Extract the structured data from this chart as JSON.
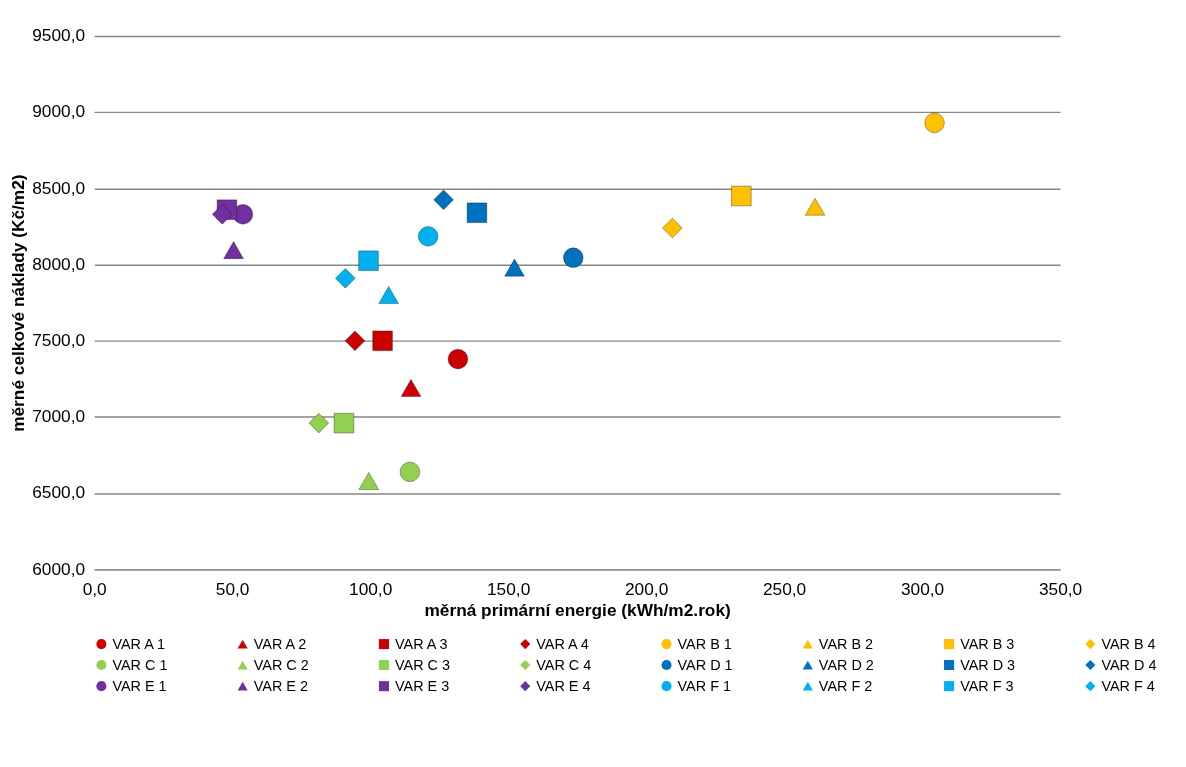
{
  "chart_data": {
    "type": "scatter",
    "xlabel": "měrná primární energie (kWh/m2.rok)",
    "ylabel": "měrné celkové náklady (Kč/m2)",
    "xlim": [
      0,
      350
    ],
    "ylim": [
      6000,
      9500
    ],
    "xticks": [
      {
        "value": 0,
        "label": "0,0"
      },
      {
        "value": 50,
        "label": "50,0"
      },
      {
        "value": 100,
        "label": "100,0"
      },
      {
        "value": 150,
        "label": "150,0"
      },
      {
        "value": 200,
        "label": "200,0"
      },
      {
        "value": 250,
        "label": "250,0"
      },
      {
        "value": 300,
        "label": "300,0"
      },
      {
        "value": 350,
        "label": "350,0"
      }
    ],
    "yticks": [
      {
        "value": 6000,
        "label": "6000,0"
      },
      {
        "value": 6500,
        "label": "6500,0"
      },
      {
        "value": 7000,
        "label": "7000,0"
      },
      {
        "value": 7500,
        "label": "7500,0"
      },
      {
        "value": 8000,
        "label": "8000,0"
      },
      {
        "value": 8500,
        "label": "8500,0"
      },
      {
        "value": 9000,
        "label": "9000,0"
      },
      {
        "value": 9500,
        "label": "9500,0"
      }
    ],
    "grid": "y",
    "legend": "bottom",
    "series": [
      {
        "name": "VAR A 1",
        "color": "#cc0000",
        "marker": "circle",
        "x": [
          131.8
        ],
        "values": [
          7380
        ]
      },
      {
        "name": "VAR A 2",
        "color": "#cc0000",
        "marker": "triangle",
        "x": [
          114.8
        ],
        "values": [
          7190
        ]
      },
      {
        "name": "VAR A 3",
        "color": "#cc0000",
        "marker": "square",
        "x": [
          104.5
        ],
        "values": [
          7500
        ]
      },
      {
        "name": "VAR A 4",
        "color": "#cc0000",
        "marker": "diamond",
        "x": [
          94.5
        ],
        "values": [
          7500
        ]
      },
      {
        "name": "VAR B 1",
        "color": "#ffc000",
        "marker": "circle",
        "x": [
          304.5
        ],
        "values": [
          8930
        ]
      },
      {
        "name": "VAR B 2",
        "color": "#ffc000",
        "marker": "triangle",
        "x": [
          261.2
        ],
        "values": [
          8380
        ]
      },
      {
        "name": "VAR B 3",
        "color": "#ffc000",
        "marker": "square",
        "x": [
          234.5
        ],
        "values": [
          8450
        ]
      },
      {
        "name": "VAR B 4",
        "color": "#ffc000",
        "marker": "diamond",
        "x": [
          209.5
        ],
        "values": [
          8240
        ]
      },
      {
        "name": "VAR C 1",
        "color": "#92d050",
        "marker": "circle",
        "x": [
          114.4
        ],
        "values": [
          6640
        ]
      },
      {
        "name": "VAR C 2",
        "color": "#92d050",
        "marker": "triangle",
        "x": [
          99.5
        ],
        "values": [
          6580
        ]
      },
      {
        "name": "VAR C 3",
        "color": "#92d050",
        "marker": "square",
        "x": [
          90.5
        ],
        "values": [
          6960
        ]
      },
      {
        "name": "VAR C 4",
        "color": "#92d050",
        "marker": "diamond",
        "x": [
          81.4
        ],
        "values": [
          6960
        ]
      },
      {
        "name": "VAR D 1",
        "color": "#0070c0",
        "marker": "circle",
        "x": [
          173.6
        ],
        "values": [
          8045
        ]
      },
      {
        "name": "VAR D 2",
        "color": "#0070c0",
        "marker": "triangle",
        "x": [
          152.3
        ],
        "values": [
          7980
        ]
      },
      {
        "name": "VAR D 3",
        "color": "#0070c0",
        "marker": "square",
        "x": [
          138.7
        ],
        "values": [
          8340
        ]
      },
      {
        "name": "VAR D 4",
        "color": "#0070c0",
        "marker": "diamond",
        "x": [
          126.6
        ],
        "values": [
          8425
        ]
      },
      {
        "name": "VAR E 1",
        "color": "#7030a0",
        "marker": "circle",
        "x": [
          53.9
        ],
        "values": [
          8330
        ]
      },
      {
        "name": "VAR E 2",
        "color": "#7030a0",
        "marker": "triangle",
        "x": [
          50.5
        ],
        "values": [
          8095
        ]
      },
      {
        "name": "VAR E 3",
        "color": "#7030a0",
        "marker": "square",
        "x": [
          48.1
        ],
        "values": [
          8360
        ]
      },
      {
        "name": "VAR E 4",
        "color": "#7030a0",
        "marker": "diamond",
        "x": [
          46.4
        ],
        "values": [
          8330
        ]
      },
      {
        "name": "VAR F 1",
        "color": "#00b0f0",
        "marker": "circle",
        "x": [
          121.0
        ],
        "values": [
          8185
        ]
      },
      {
        "name": "VAR F 2",
        "color": "#00b0f0",
        "marker": "triangle",
        "x": [
          106.7
        ],
        "values": [
          7800
        ]
      },
      {
        "name": "VAR F 3",
        "color": "#00b0f0",
        "marker": "square",
        "x": [
          99.4
        ],
        "values": [
          8025
        ]
      },
      {
        "name": "VAR F 4",
        "color": "#00b0f0",
        "marker": "diamond",
        "x": [
          91.0
        ],
        "values": [
          7910
        ]
      }
    ]
  }
}
